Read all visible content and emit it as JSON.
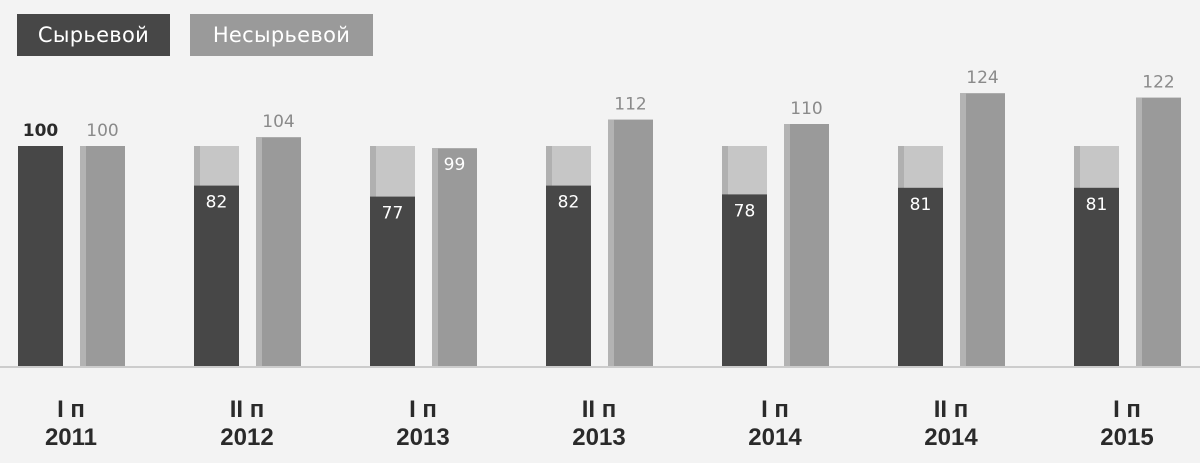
{
  "legend": {
    "raw_label": "Сырьевой",
    "nonraw_label": "Несырьевой"
  },
  "colors": {
    "raw": "#474747",
    "raw_ghost": "#c6c6c6",
    "nonraw": "#9a9a9a",
    "nonraw_edge": "#b3b3b3",
    "axis": "#cccccc"
  },
  "chart_data": {
    "type": "bar",
    "categories": [
      "I п\n2011",
      "II п\n2012",
      "I п\n2013",
      "II п\n2013",
      "I п\n2014",
      "II п\n2014",
      "I п\n2015"
    ],
    "series": [
      {
        "name": "Сырьевой",
        "values": [
          100,
          82,
          77,
          82,
          78,
          81,
          81
        ]
      },
      {
        "name": "Несырьевой",
        "values": [
          100,
          104,
          99,
          112,
          110,
          124,
          122
        ]
      }
    ],
    "reference_value": 100,
    "ylim": [
      0,
      124
    ],
    "legend_position": "top-left",
    "grid": false
  }
}
